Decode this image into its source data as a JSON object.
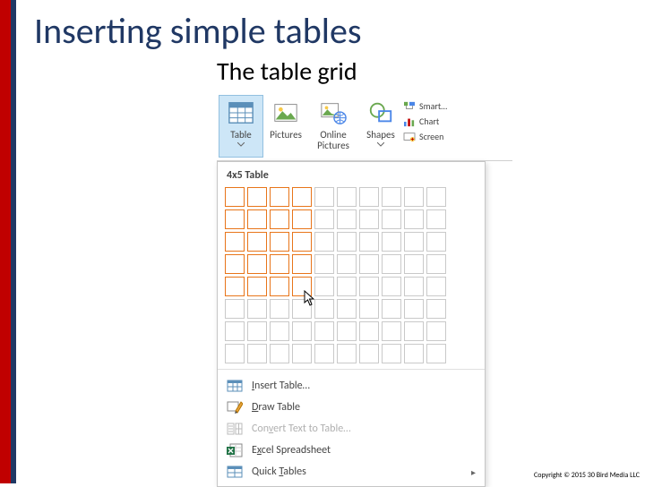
{
  "slide": {
    "title": "Inserting simple tables",
    "subtitle": "The table grid",
    "copyright": "Copyright © 2015 30 Bird Media LLC",
    "accent_color_left_outer": "#c00000",
    "accent_color_left_inner": "#1f3864",
    "title_color": "#203864"
  },
  "ribbon": {
    "items": [
      {
        "label": "Table",
        "icon": "table-icon",
        "selected": true
      },
      {
        "label": "Pictures",
        "icon": "pictures-icon",
        "selected": false
      },
      {
        "label": "Online Pictures",
        "icon": "online-pictures-icon",
        "selected": false
      },
      {
        "label": "Shapes",
        "icon": "shapes-icon",
        "selected": false
      }
    ],
    "side_items": [
      {
        "label": "Smart…",
        "icon": "smartart-icon"
      },
      {
        "label": "Chart",
        "icon": "chart-icon"
      },
      {
        "label": "Screen",
        "icon": "screenshot-icon"
      }
    ]
  },
  "table_dropdown": {
    "caption": "4x5 Table",
    "grid": {
      "cols": 10,
      "rows": 8,
      "highlight_cols": 4,
      "highlight_rows": 5,
      "cell_size": 22,
      "cell_gap": 3,
      "highlight_border": "#e8751a",
      "cell_border": "#c9c9c9",
      "cursor_cell": {
        "col": 4,
        "row": 5
      }
    },
    "menu": [
      {
        "label": "Insert Table…",
        "underline_idx": 0,
        "icon": "insert-table-icon",
        "disabled": false,
        "has_submenu": false
      },
      {
        "label": "Draw Table",
        "underline_idx": 0,
        "icon": "draw-table-icon",
        "disabled": false,
        "has_submenu": false
      },
      {
        "label": "Convert Text to Table…",
        "underline_idx": 3,
        "icon": "convert-icon",
        "disabled": true,
        "has_submenu": false
      },
      {
        "label": "Excel Spreadsheet",
        "underline_idx": 1,
        "icon": "excel-icon",
        "disabled": false,
        "has_submenu": false
      },
      {
        "label": "Quick Tables",
        "underline_idx": 6,
        "icon": "quick-tables-icon",
        "disabled": false,
        "has_submenu": true
      }
    ]
  }
}
